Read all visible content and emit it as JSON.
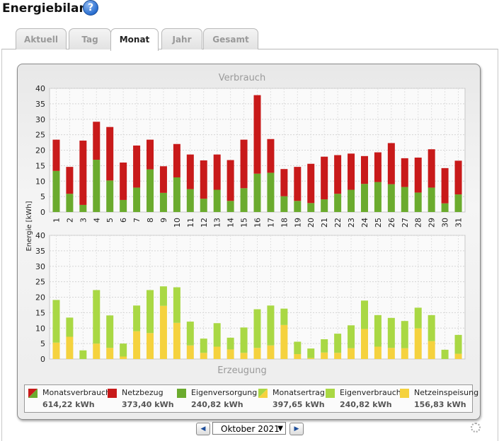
{
  "page": {
    "title": "Energiebilanz",
    "help": "?"
  },
  "tabs": [
    {
      "label": "Aktuell",
      "active": false
    },
    {
      "label": "Tag",
      "active": false
    },
    {
      "label": "Monat",
      "active": true
    },
    {
      "label": "Jahr",
      "active": false
    },
    {
      "label": "Gesamt",
      "active": false
    }
  ],
  "colors": {
    "red": "#c81a1a",
    "green": "#6bab2e",
    "lightgreen": "#a9d844",
    "yellow": "#f5d23e"
  },
  "legend": [
    {
      "label": "Monatsverbrauch",
      "value": "614,22 kWh",
      "swatch": "red-green"
    },
    {
      "label": "Netzbezug",
      "value": "373,40 kWh",
      "swatch": "red"
    },
    {
      "label": "Eigenversorgung",
      "value": "240,82 kWh",
      "swatch": "green"
    },
    {
      "label": "Monatsertrag",
      "value": "397,65 kWh",
      "swatch": "yellow-lightgreen"
    },
    {
      "label": "Eigenverbrauch",
      "value": "240,82 kWh",
      "swatch": "lightgreen"
    },
    {
      "label": "Netzeinspeisung",
      "value": "156,83 kWh",
      "swatch": "yellow"
    }
  ],
  "navigation": {
    "prev": "◀",
    "next": "▶",
    "month": "Oktober 2021",
    "dropdown": "▼"
  },
  "chart_data": [
    {
      "type": "bar",
      "stacked": true,
      "title": "Verbrauch",
      "ylabel": "Energie [kWh]",
      "ylim": [
        0,
        40
      ],
      "yticks": [
        0,
        5,
        10,
        15,
        20,
        25,
        30,
        35,
        40
      ],
      "grid": true,
      "categories": [
        "1",
        "2",
        "3",
        "4",
        "5",
        "6",
        "7",
        "8",
        "9",
        "10",
        "11",
        "12",
        "13",
        "14",
        "15",
        "16",
        "17",
        "18",
        "19",
        "20",
        "21",
        "22",
        "23",
        "24",
        "25",
        "26",
        "27",
        "28",
        "29",
        "30",
        "31"
      ],
      "series": [
        {
          "name": "Eigenversorgung",
          "color": "#6bab2e",
          "values": [
            13.3,
            5.9,
            2.3,
            16.9,
            10.2,
            3.9,
            7.9,
            13.8,
            6.2,
            11.2,
            7.4,
            4.3,
            7.2,
            3.6,
            7.7,
            12.4,
            12.7,
            5.1,
            3.6,
            2.9,
            4.1,
            5.9,
            7.2,
            9.1,
            9.7,
            9.0,
            8.1,
            6.3,
            7.9,
            2.8,
            5.7
          ]
        },
        {
          "name": "Netzbezug",
          "color": "#c81a1a",
          "values": [
            10.1,
            8.7,
            20.8,
            12.3,
            17.3,
            12.1,
            13.6,
            9.6,
            8.6,
            10.8,
            11.2,
            12.4,
            11.4,
            13.2,
            15.7,
            25.4,
            10.9,
            8.8,
            11.0,
            12.7,
            13.8,
            12.5,
            11.7,
            9.0,
            9.6,
            13.3,
            9.3,
            11.3,
            12.4,
            11.4,
            10.9
          ]
        }
      ]
    },
    {
      "type": "bar",
      "stacked": true,
      "title": "Erzeugung",
      "ylim": [
        0,
        40
      ],
      "yticks": [
        0,
        5,
        10,
        15,
        20,
        25,
        30,
        35,
        40
      ],
      "grid": true,
      "categories": [
        "1",
        "2",
        "3",
        "4",
        "5",
        "6",
        "7",
        "8",
        "9",
        "10",
        "11",
        "12",
        "13",
        "14",
        "15",
        "16",
        "17",
        "18",
        "19",
        "20",
        "21",
        "22",
        "23",
        "24",
        "25",
        "26",
        "27",
        "28",
        "29",
        "30",
        "31"
      ],
      "series": [
        {
          "name": "Netzeinspeisung",
          "color": "#f5d23e",
          "values": [
            5.3,
            7.2,
            0,
            5.0,
            3.6,
            0.8,
            9.0,
            8.4,
            17.2,
            11.7,
            4.4,
            2.0,
            4.0,
            3.1,
            2.0,
            3.6,
            4.4,
            11.0,
            1.6,
            0.3,
            2.1,
            2.0,
            3.5,
            9.7,
            4.0,
            3.6,
            3.5,
            9.9,
            5.8,
            0,
            1.7
          ]
        },
        {
          "name": "Eigenverbrauch",
          "color": "#a9d844",
          "values": [
            13.8,
            6.2,
            2.8,
            17.3,
            10.5,
            4.2,
            8.3,
            13.9,
            6.3,
            11.5,
            7.7,
            4.6,
            7.6,
            3.8,
            8.2,
            12.5,
            12.9,
            5.3,
            4.0,
            3.1,
            4.3,
            6.2,
            7.4,
            9.2,
            10.2,
            9.7,
            8.8,
            6.7,
            8.4,
            3.0,
            6.1
          ]
        }
      ]
    }
  ]
}
